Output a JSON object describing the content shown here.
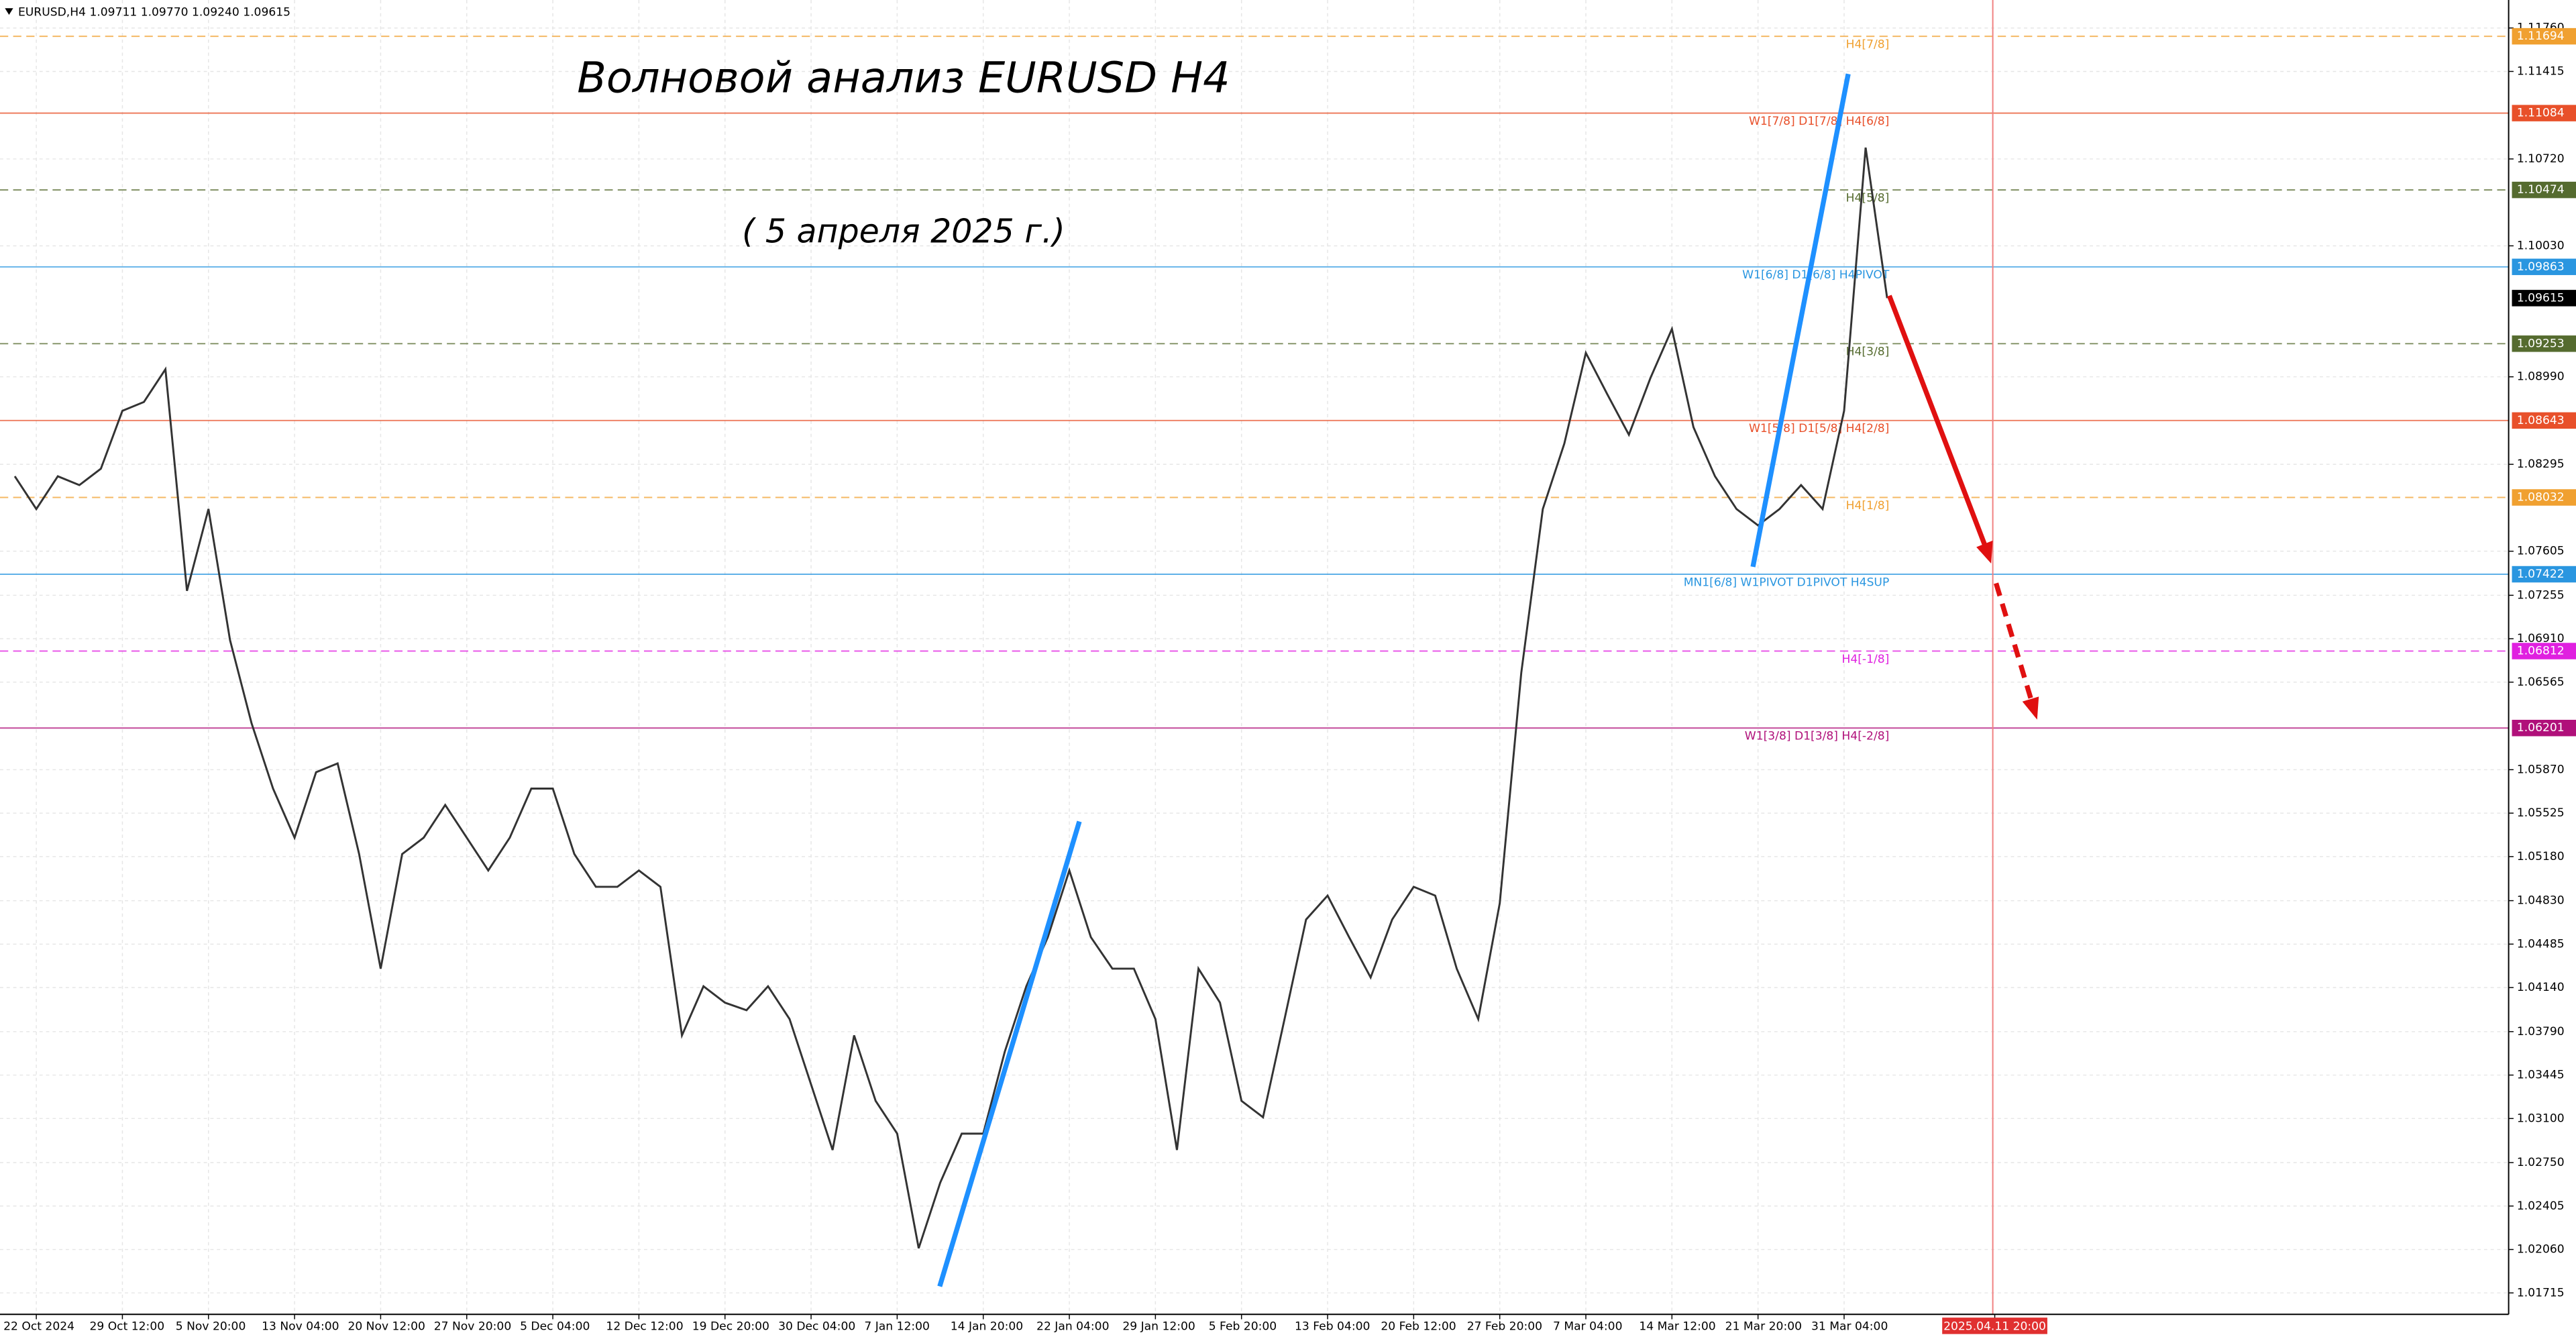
{
  "chart_data": {
    "type": "line",
    "header": "EURUSD,H4  1.09711 1.09770 1.09240 1.09615",
    "title": "Волновой анализ EURUSD H4",
    "subtitle": "( 5 апреля 2025 г.)",
    "color": "#333333",
    "grid": true,
    "ylim": [
      1.01545,
      1.11982
    ],
    "yticks": [
      {
        "value": 1.1176,
        "label": "1.11760"
      },
      1.11415,
      {
        "value": 1.1072,
        "label": "1.10720"
      },
      {
        "value": 1.1003,
        "label": "1.10030"
      },
      {
        "value": 1.0899,
        "label": "1.08990"
      },
      1.08295,
      1.07605,
      1.07255,
      {
        "value": 1.0691,
        "label": "1.06910"
      },
      1.06565,
      {
        "value": 1.0587,
        "label": "1.05870"
      },
      1.05525,
      {
        "value": 1.0518,
        "label": "1.05180"
      },
      {
        "value": 1.0483,
        "label": "1.04830"
      },
      1.04485,
      {
        "value": 1.0414,
        "label": "1.04140"
      },
      {
        "value": 1.0379,
        "label": "1.03790"
      },
      1.03445,
      {
        "value": 1.031,
        "label": "1.03100"
      },
      {
        "value": 1.0275,
        "label": "1.02750"
      },
      1.02405,
      {
        "value": 1.0206,
        "label": "1.02060"
      },
      1.01715
    ],
    "categories": [
      null,
      "22 Oct 2024",
      null,
      null,
      null,
      "29 Oct 12:00",
      null,
      null,
      null,
      "5 Nov 20:00",
      null,
      null,
      null,
      "13 Nov 04:00",
      null,
      null,
      null,
      "20 Nov 12:00",
      null,
      null,
      null,
      "27 Nov 20:00",
      null,
      null,
      null,
      "5 Dec 04:00",
      null,
      null,
      null,
      "12 Dec 12:00",
      null,
      null,
      null,
      "19 Dec 20:00",
      null,
      null,
      null,
      "30 Dec 04:00",
      null,
      null,
      null,
      "7 Jan 12:00",
      null,
      null,
      null,
      "14 Jan 20:00",
      null,
      null,
      null,
      "22 Jan 04:00",
      null,
      null,
      null,
      "29 Jan 12:00",
      null,
      null,
      null,
      "5 Feb 20:00",
      null,
      null,
      null,
      "13 Feb 04:00",
      null,
      null,
      null,
      "20 Feb 12:00",
      null,
      null,
      null,
      "27 Feb 20:00",
      null,
      null,
      null,
      "7 Mar 04:00",
      null,
      null,
      null,
      "14 Mar 12:00",
      null,
      null,
      null,
      "21 Mar 20:00",
      null,
      null,
      null,
      "31 Mar 04:00",
      null,
      null,
      null,
      null,
      null,
      null,
      "2025.04.11 20:00"
    ],
    "values": [
      1.082,
      1.0794,
      1.082,
      1.0813,
      1.0826,
      1.0872,
      1.0879,
      1.0905,
      1.0729,
      1.0794,
      1.069,
      1.0624,
      1.0572,
      1.0533,
      1.0585,
      1.0592,
      1.052,
      1.0429,
      1.052,
      1.0533,
      1.0559,
      1.0533,
      1.0507,
      1.0533,
      1.0572,
      1.0572,
      1.052,
      1.0494,
      1.0494,
      1.0507,
      1.0494,
      1.0376,
      1.0415,
      1.0402,
      1.0396,
      1.0415,
      1.0389,
      1.0337,
      1.0285,
      1.0376,
      1.0324,
      1.0298,
      1.0207,
      1.0259,
      1.0298,
      1.0298,
      1.0363,
      1.0415,
      1.0454,
      1.0507,
      1.0454,
      1.0429,
      1.0429,
      1.0389,
      1.0285,
      1.0429,
      1.0402,
      1.0324,
      1.0311,
      1.0389,
      1.0468,
      1.0487,
      1.0454,
      1.0422,
      1.0468,
      1.0494,
      1.0487,
      1.0429,
      1.0389,
      1.0481,
      1.0664,
      1.0794,
      1.0846,
      1.0918,
      1.0885,
      1.0853,
      1.0898,
      1.0937,
      1.0859,
      1.082,
      1.0794,
      1.0781,
      1.0794,
      1.0813,
      1.0794,
      1.0872,
      1.1081,
      1.09615,
      null,
      null,
      null,
      null,
      null
    ],
    "last_price": 1.09615,
    "levels": [
      {
        "value": 1.11694,
        "label": "H4[7/8]",
        "color": "#f0a030",
        "dashed": true
      },
      {
        "value": 1.11084,
        "label": "W1[7/8] D1[7/8] H4[6/8]",
        "color": "#e8502a",
        "dashed": false
      },
      {
        "value": 1.10474,
        "label": "H4[5/8]",
        "color": "#556b2f",
        "dashed": true
      },
      {
        "value": 1.09863,
        "label": "W1[6/8] D1[6/8] H4PIVOT",
        "color": "#2a96e0",
        "dashed": false
      },
      {
        "value": 1.09253,
        "label": "H4[3/8]",
        "color": "#556b2f",
        "dashed": true
      },
      {
        "value": 1.08643,
        "label": "W1[5/8] D1[5/8] H4[2/8]",
        "color": "#e8502a",
        "dashed": false
      },
      {
        "value": 1.08032,
        "label": "H4[1/8]",
        "color": "#f0a030",
        "dashed": true
      },
      {
        "value": 1.07422,
        "label": "MN1[6/8] W1PIVOT D1PIVOT H4SUP",
        "color": "#2a96e0",
        "dashed": false
      },
      {
        "value": 1.06812,
        "label": "H4[-1/8]",
        "color": "#e020e0",
        "dashed": true
      },
      {
        "value": 1.06201,
        "label": "W1[3/8] D1[3/8] H4[-2/8]",
        "color": "#b0107a",
        "dashed": false
      }
    ]
  }
}
